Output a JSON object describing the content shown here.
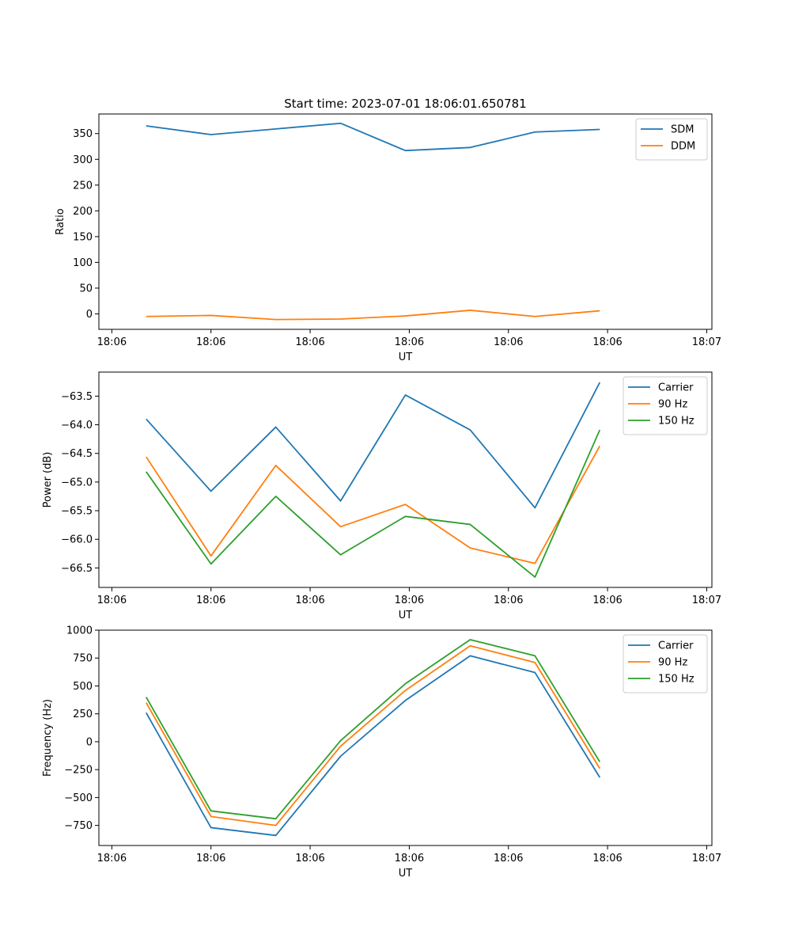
{
  "figure_title": "Start time: 2023-07-01 18:06:01.650781",
  "colors": {
    "blue": "#1f77b4",
    "orange": "#ff7f0e",
    "green": "#2ca02c"
  },
  "chart_data": [
    {
      "type": "line",
      "title": "Start time: 2023-07-01 18:06:01.650781",
      "xlabel": "UT",
      "ylabel": "Ratio",
      "x": [
        1,
        2,
        3,
        4,
        5,
        6,
        7,
        8
      ],
      "xlim": [
        0.27,
        9.73
      ],
      "xticks": [
        0.47,
        2.0,
        3.53,
        5.06,
        6.59,
        8.12,
        9.65
      ],
      "xticklabels": [
        "18:06",
        "18:06",
        "18:06",
        "18:06",
        "18:06",
        "18:06",
        "18:07"
      ],
      "ylim": [
        -30,
        388
      ],
      "yticks": [
        0,
        50,
        100,
        150,
        200,
        250,
        300,
        350
      ],
      "yticklabels": [
        "0",
        "50",
        "100",
        "150",
        "200",
        "250",
        "300",
        "350"
      ],
      "legend_position": "top-right",
      "series": [
        {
          "name": "SDM",
          "color": "#1f77b4",
          "values": [
            365,
            348,
            359,
            370,
            317,
            323,
            353,
            358
          ]
        },
        {
          "name": "DDM",
          "color": "#ff7f0e",
          "values": [
            -5,
            -3,
            -11,
            -10,
            -4,
            7,
            -5,
            6
          ]
        }
      ]
    },
    {
      "type": "line",
      "title": "",
      "xlabel": "UT",
      "ylabel": "Power (dB)",
      "x": [
        1,
        2,
        3,
        4,
        5,
        6,
        7,
        8
      ],
      "xlim": [
        0.27,
        9.73
      ],
      "xticks": [
        0.47,
        2.0,
        3.53,
        5.06,
        6.59,
        8.12,
        9.65
      ],
      "xticklabels": [
        "18:06",
        "18:06",
        "18:06",
        "18:06",
        "18:06",
        "18:06",
        "18:07"
      ],
      "ylim": [
        -66.84,
        -63.08
      ],
      "yticks": [
        -66.5,
        -66.0,
        -65.5,
        -65.0,
        -64.5,
        -64.0,
        -63.5
      ],
      "yticklabels": [
        "−66.5",
        "−66.0",
        "−65.5",
        "−65.0",
        "−64.5",
        "−64.0",
        "−63.5"
      ],
      "legend_position": "top-right",
      "series": [
        {
          "name": "Carrier",
          "color": "#1f77b4",
          "values": [
            -63.9,
            -65.16,
            -64.04,
            -65.33,
            -63.48,
            -64.09,
            -65.45,
            -63.26
          ]
        },
        {
          "name": "90 Hz",
          "color": "#ff7f0e",
          "values": [
            -64.56,
            -66.29,
            -64.71,
            -65.78,
            -65.39,
            -66.15,
            -66.42,
            -64.37
          ]
        },
        {
          "name": "150 Hz",
          "color": "#2ca02c",
          "values": [
            -64.82,
            -66.43,
            -65.25,
            -66.27,
            -65.6,
            -65.74,
            -66.66,
            -64.09
          ]
        }
      ]
    },
    {
      "type": "line",
      "title": "",
      "xlabel": "UT",
      "ylabel": "Frequency (Hz)",
      "x": [
        1,
        2,
        3,
        4,
        5,
        6,
        7,
        8
      ],
      "xlim": [
        0.27,
        9.73
      ],
      "xticks": [
        0.47,
        2.0,
        3.53,
        5.06,
        6.59,
        8.12,
        9.65
      ],
      "xticklabels": [
        "18:06",
        "18:06",
        "18:06",
        "18:06",
        "18:06",
        "18:06",
        "18:07"
      ],
      "ylim": [
        -930,
        1000
      ],
      "yticks": [
        -750,
        -500,
        -250,
        0,
        250,
        500,
        750,
        1000
      ],
      "yticklabels": [
        "−750",
        "−500",
        "−250",
        "0",
        "250",
        "500",
        "750",
        "1000"
      ],
      "legend_position": "top-right",
      "series": [
        {
          "name": "Carrier",
          "color": "#1f77b4",
          "values": [
            260,
            -770,
            -840,
            -130,
            370,
            770,
            620,
            -320
          ]
        },
        {
          "name": "90 Hz",
          "color": "#ff7f0e",
          "values": [
            350,
            -670,
            -750,
            -40,
            460,
            860,
            710,
            -240
          ]
        },
        {
          "name": "150 Hz",
          "color": "#2ca02c",
          "values": [
            400,
            -620,
            -690,
            10,
            520,
            915,
            770,
            -180
          ]
        }
      ]
    }
  ]
}
